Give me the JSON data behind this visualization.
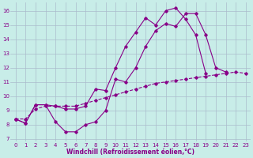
{
  "bg_color": "#c8ede8",
  "line_color": "#880088",
  "grid_color": "#aabbcc",
  "xlim": [
    -0.5,
    23.5
  ],
  "ylim": [
    6.8,
    16.6
  ],
  "x_ticks": [
    0,
    1,
    2,
    3,
    4,
    5,
    6,
    7,
    8,
    9,
    10,
    11,
    12,
    13,
    14,
    15,
    16,
    17,
    18,
    19,
    20,
    21,
    22,
    23
  ],
  "y_ticks": [
    7,
    8,
    9,
    10,
    11,
    12,
    13,
    14,
    15,
    16
  ],
  "xlabel": "Windchill (Refroidissement éolien,°C)",
  "line1_x": [
    0,
    1,
    2,
    3,
    4,
    5,
    6,
    7,
    8,
    9,
    10,
    11,
    12,
    13,
    14,
    15,
    16,
    17,
    18,
    19,
    20,
    21
  ],
  "line1_y": [
    8.4,
    8.1,
    9.4,
    9.4,
    8.2,
    7.5,
    7.5,
    8.0,
    8.2,
    9.0,
    11.2,
    11.0,
    12.0,
    13.5,
    14.6,
    15.1,
    14.9,
    15.8,
    15.8,
    14.3,
    12.0,
    11.7
  ],
  "line2_x": [
    0,
    1,
    2,
    3,
    4,
    5,
    6,
    7,
    8,
    9,
    10,
    11,
    12,
    13,
    14,
    15,
    16,
    17,
    18,
    19
  ],
  "line2_y": [
    8.4,
    8.1,
    9.4,
    9.4,
    9.3,
    9.1,
    9.1,
    9.3,
    10.5,
    10.4,
    12.0,
    13.5,
    14.5,
    15.5,
    15.0,
    16.0,
    16.2,
    15.4,
    14.3,
    11.6
  ],
  "line3_x": [
    0,
    1,
    2,
    3,
    4,
    5,
    6,
    7,
    8,
    9,
    10,
    11,
    12,
    13,
    14,
    15,
    16,
    17,
    18,
    19,
    20,
    21,
    22,
    23
  ],
  "line3_y": [
    8.4,
    8.4,
    9.1,
    9.3,
    9.3,
    9.3,
    9.3,
    9.5,
    9.7,
    9.9,
    10.1,
    10.3,
    10.5,
    10.7,
    10.9,
    11.0,
    11.1,
    11.2,
    11.3,
    11.4,
    11.5,
    11.6,
    11.7,
    11.6
  ]
}
